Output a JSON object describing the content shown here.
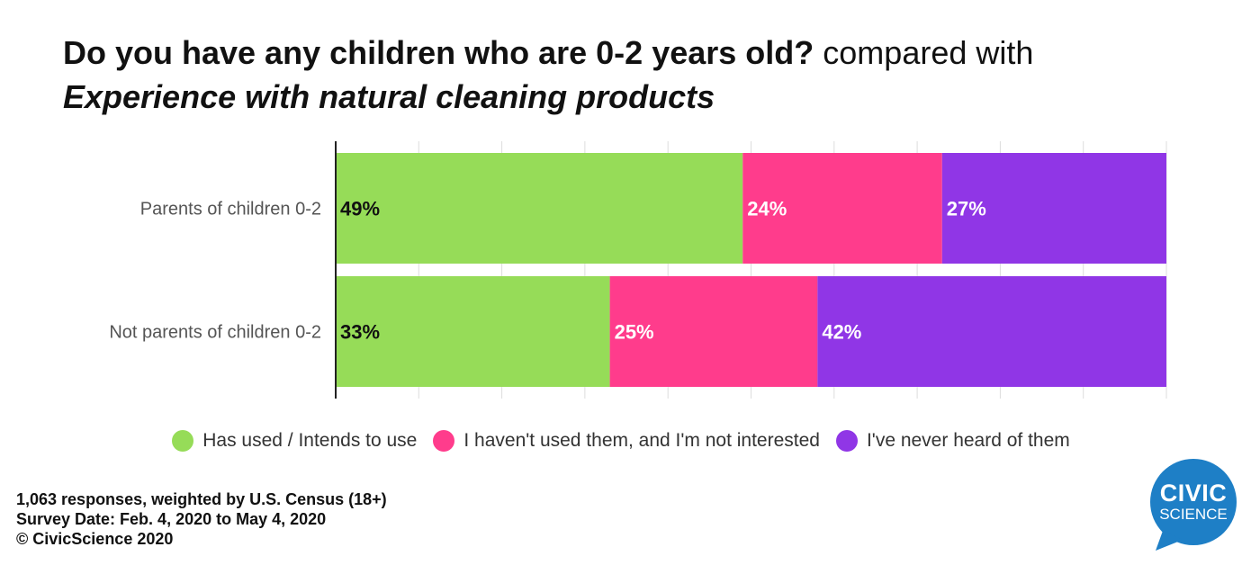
{
  "title": {
    "part1": "Do you have any children who are 0-2 years old?",
    "part2": "compared with",
    "part3": "Experience with natural cleaning products"
  },
  "chart_data": {
    "type": "bar",
    "orientation": "horizontal",
    "stacked": true,
    "categories": [
      "Parents of children 0-2",
      "Not parents of children 0-2"
    ],
    "series": [
      {
        "name": "Has used / Intends to use",
        "values": [
          49,
          33
        ],
        "labels": [
          "49%",
          "33%"
        ],
        "color": "#96dc58",
        "label_color": "#111111"
      },
      {
        "name": "I haven't used them, and I'm not interested",
        "values": [
          24,
          25
        ],
        "labels": [
          "24%",
          "25%"
        ],
        "color": "#ff3c8c",
        "label_color": "#ffffff"
      },
      {
        "name": "I've never heard of them",
        "values": [
          27,
          42
        ],
        "labels": [
          "27%",
          "42%"
        ],
        "color": "#9036e6",
        "label_color": "#ffffff"
      }
    ],
    "xlim": [
      0,
      100
    ],
    "grid": true,
    "legend_position": "bottom-center"
  },
  "footer": {
    "line1": "1,063 responses, weighted by U.S. Census (18+)",
    "line2": "Survey Date: Feb. 4, 2020 to May 4, 2020",
    "line3": "© CivicScience 2020"
  },
  "logo": {
    "line1": "CIVIC",
    "line2": "SCIENCE",
    "color": "#1e7fc6"
  }
}
